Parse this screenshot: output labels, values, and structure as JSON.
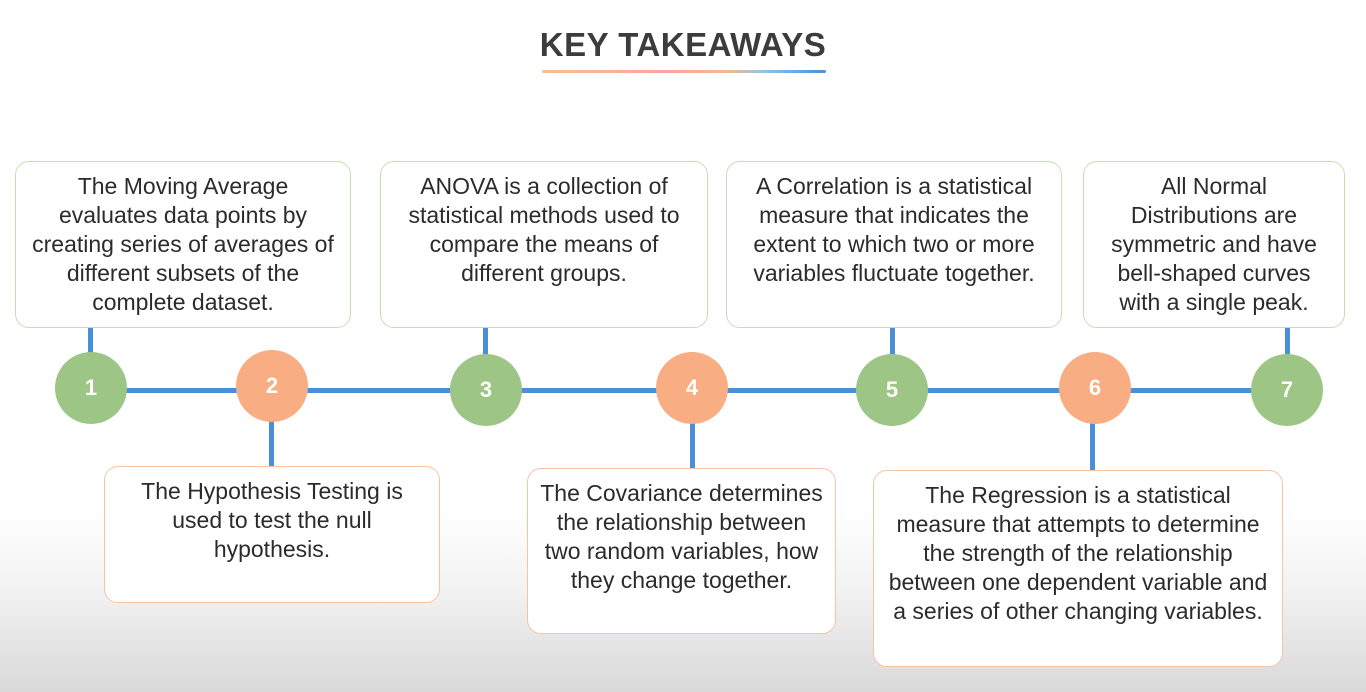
{
  "title": "KEY TAKEAWAYS",
  "colors": {
    "line": "#4a90d9",
    "green_node": "#9dc686",
    "orange_node": "#f9ad83",
    "green_border": "#c5dfb5",
    "orange_border": "#f6c4a4"
  },
  "nodes": [
    {
      "number": "1",
      "color": "green"
    },
    {
      "number": "2",
      "color": "orange"
    },
    {
      "number": "3",
      "color": "green"
    },
    {
      "number": "4",
      "color": "orange"
    },
    {
      "number": "5",
      "color": "green"
    },
    {
      "number": "6",
      "color": "orange"
    },
    {
      "number": "7",
      "color": "green"
    }
  ],
  "takeaways": [
    {
      "number": "1",
      "text": "The Moving Average evaluates data points by creating series of averages of different subsets of the complete dataset."
    },
    {
      "number": "2",
      "text": "The Hypothesis Testing is used to test the null hypothesis."
    },
    {
      "number": "3",
      "text": "ANOVA is a collection of statistical methods used to compare the means of different groups."
    },
    {
      "number": "4",
      "text": "The Covariance determines the relationship between two random variables, how they change together."
    },
    {
      "number": "5",
      "text": "A Correlation is a statistical measure that indicates the extent to which two or more variables fluctuate together."
    },
    {
      "number": "6",
      "text": "The Regression is a statistical measure that attempts to determine the strength of the relationship between one dependent variable and a series of other changing variables."
    },
    {
      "number": "7",
      "text": "All Normal Distributions are symmetric and have bell-shaped curves with a single peak."
    }
  ]
}
